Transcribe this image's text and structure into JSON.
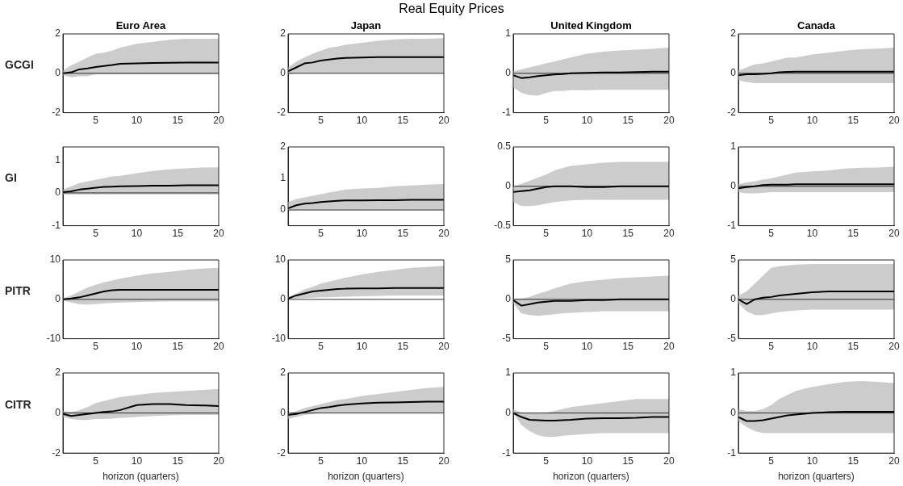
{
  "chart_data": [
    {
      "type": "line",
      "title": "Euro Area",
      "ylabel": "GCGI",
      "annotations": [
        "Real Equity Prices"
      ],
      "x": [
        1,
        2,
        3,
        4,
        5,
        6,
        7,
        8,
        10,
        12,
        14,
        16,
        18,
        20
      ],
      "xlim": [
        1,
        20
      ],
      "xticks": [
        5,
        10,
        15,
        20
      ],
      "ylim": [
        -2,
        2
      ],
      "yticks": [
        -2,
        0,
        2
      ],
      "grid": false,
      "ref_lines": [
        {
          "axis": "y",
          "value": 0
        }
      ],
      "series": [
        {
          "color": "#000000",
          "values": [
            0,
            0.05,
            0.2,
            0.25,
            0.32,
            0.37,
            0.42,
            0.48,
            0.5,
            0.52,
            0.53,
            0.54,
            0.55,
            0.55
          ],
          "lower": [
            -0.1,
            -0.2,
            -0.15,
            -0.15,
            -0.05,
            -0.05,
            -0.05,
            -0.05,
            -0.05,
            -0.05,
            -0.05,
            -0.05,
            -0.05,
            -0.05
          ],
          "upper": [
            0.15,
            0.4,
            0.6,
            0.8,
            1.0,
            1.05,
            1.15,
            1.3,
            1.5,
            1.6,
            1.7,
            1.75,
            1.75,
            1.75
          ]
        }
      ]
    },
    {
      "type": "line",
      "title": "Japan",
      "x": [
        1,
        2,
        3,
        4,
        5,
        6,
        7,
        8,
        10,
        12,
        14,
        16,
        18,
        20
      ],
      "xlim": [
        1,
        20
      ],
      "xticks": [
        5,
        10,
        15,
        20
      ],
      "ylim": [
        -2,
        2
      ],
      "yticks": [
        -2,
        0,
        2
      ],
      "grid": false,
      "ref_lines": [
        {
          "axis": "y",
          "value": 0
        }
      ],
      "series": [
        {
          "color": "#000000",
          "values": [
            0.1,
            0.3,
            0.5,
            0.55,
            0.65,
            0.7,
            0.75,
            0.78,
            0.8,
            0.82,
            0.82,
            0.82,
            0.82,
            0.82
          ],
          "lower": [
            -0.05,
            0,
            0,
            0,
            0,
            0,
            0,
            0,
            0,
            0,
            0,
            0,
            0,
            0
          ],
          "upper": [
            0.3,
            0.6,
            0.8,
            1.0,
            1.15,
            1.3,
            1.35,
            1.45,
            1.55,
            1.65,
            1.72,
            1.75,
            1.75,
            1.78
          ]
        }
      ]
    },
    {
      "type": "line",
      "title": "United Kingdom",
      "x": [
        1,
        2,
        3,
        4,
        5,
        6,
        7,
        8,
        10,
        12,
        14,
        16,
        18,
        20
      ],
      "xlim": [
        1,
        20
      ],
      "xticks": [
        5,
        10,
        15,
        20
      ],
      "ylim": [
        -1,
        1
      ],
      "yticks": [
        -1,
        0,
        1
      ],
      "grid": false,
      "ref_lines": [
        {
          "axis": "y",
          "value": 0
        }
      ],
      "series": [
        {
          "color": "#000000",
          "values": [
            -0.05,
            -0.12,
            -0.1,
            -0.07,
            -0.05,
            -0.03,
            -0.02,
            0,
            0.01,
            0.02,
            0.02,
            0.03,
            0.04,
            0.04
          ],
          "lower": [
            -0.35,
            -0.5,
            -0.55,
            -0.57,
            -0.5,
            -0.45,
            -0.45,
            -0.43,
            -0.43,
            -0.42,
            -0.42,
            -0.42,
            -0.42,
            -0.42
          ],
          "upper": [
            0.05,
            0.1,
            0.15,
            0.2,
            0.25,
            0.3,
            0.35,
            0.4,
            0.5,
            0.55,
            0.58,
            0.6,
            0.62,
            0.65
          ]
        }
      ]
    },
    {
      "type": "line",
      "title": "Canada",
      "x": [
        1,
        2,
        3,
        4,
        5,
        6,
        7,
        8,
        10,
        12,
        14,
        16,
        18,
        20
      ],
      "xlim": [
        1,
        20
      ],
      "xticks": [
        5,
        10,
        15,
        20
      ],
      "ylim": [
        -2,
        2
      ],
      "yticks": [
        -2,
        0,
        2
      ],
      "grid": false,
      "ref_lines": [
        {
          "axis": "y",
          "value": 0
        }
      ],
      "series": [
        {
          "color": "#000000",
          "values": [
            -0.1,
            -0.05,
            -0.05,
            -0.03,
            0,
            0.05,
            0.07,
            0.08,
            0.08,
            0.08,
            0.08,
            0.08,
            0.08,
            0.08
          ],
          "lower": [
            -0.35,
            -0.45,
            -0.5,
            -0.5,
            -0.5,
            -0.5,
            -0.5,
            -0.5,
            -0.5,
            -0.5,
            -0.5,
            -0.5,
            -0.5,
            -0.5
          ],
          "upper": [
            0.15,
            0.3,
            0.45,
            0.5,
            0.6,
            0.7,
            0.8,
            0.8,
            0.95,
            1.05,
            1.15,
            1.22,
            1.25,
            1.3
          ]
        }
      ]
    },
    {
      "type": "line",
      "ylabel": "GI",
      "x": [
        1,
        2,
        3,
        4,
        5,
        6,
        7,
        8,
        10,
        12,
        14,
        16,
        18,
        20
      ],
      "xlim": [
        1,
        20
      ],
      "xticks": [
        5,
        10,
        15,
        20
      ],
      "ylim": [
        -1,
        1.4
      ],
      "yticks": [
        -1,
        0,
        1
      ],
      "grid": false,
      "ref_lines": [
        {
          "axis": "y",
          "value": 0
        }
      ],
      "series": [
        {
          "color": "#000000",
          "values": [
            0.02,
            0.05,
            0.1,
            0.13,
            0.16,
            0.18,
            0.19,
            0.2,
            0.21,
            0.22,
            0.22,
            0.23,
            0.23,
            0.23
          ],
          "lower": [
            -0.05,
            -0.05,
            -0.05,
            -0.05,
            -0.05,
            -0.05,
            -0.05,
            -0.05,
            -0.05,
            -0.05,
            -0.05,
            -0.05,
            -0.05,
            -0.05
          ],
          "upper": [
            0.1,
            0.2,
            0.3,
            0.35,
            0.4,
            0.45,
            0.5,
            0.52,
            0.6,
            0.67,
            0.72,
            0.75,
            0.77,
            0.78
          ]
        }
      ]
    },
    {
      "type": "line",
      "x": [
        1,
        2,
        3,
        4,
        5,
        6,
        7,
        8,
        10,
        12,
        14,
        16,
        18,
        20
      ],
      "xlim": [
        1,
        20
      ],
      "xticks": [
        5,
        10,
        15,
        20
      ],
      "ylim": [
        -0.5,
        2
      ],
      "yticks": [
        0,
        1,
        2
      ],
      "grid": false,
      "ref_lines": [
        {
          "axis": "y",
          "value": 0
        }
      ],
      "series": [
        {
          "color": "#000000",
          "values": [
            0.05,
            0.15,
            0.2,
            0.22,
            0.25,
            0.27,
            0.29,
            0.3,
            0.3,
            0.31,
            0.31,
            0.32,
            0.32,
            0.32
          ],
          "lower": [
            0,
            0,
            0,
            0,
            0,
            0,
            0,
            0,
            0,
            0,
            0,
            0,
            0,
            0
          ],
          "upper": [
            0.25,
            0.35,
            0.4,
            0.45,
            0.5,
            0.55,
            0.6,
            0.65,
            0.68,
            0.7,
            0.75,
            0.78,
            0.8,
            0.82
          ]
        }
      ]
    },
    {
      "type": "line",
      "x": [
        1,
        2,
        3,
        4,
        5,
        6,
        7,
        8,
        10,
        12,
        14,
        16,
        18,
        20
      ],
      "xlim": [
        1,
        20
      ],
      "xticks": [
        5,
        10,
        15,
        20
      ],
      "ylim": [
        -0.5,
        0.5
      ],
      "yticks": [
        -0.5,
        0,
        0.5
      ],
      "grid": false,
      "ref_lines": [
        {
          "axis": "y",
          "value": 0
        }
      ],
      "series": [
        {
          "color": "#000000",
          "values": [
            -0.07,
            -0.06,
            -0.05,
            -0.03,
            -0.01,
            0,
            0,
            0,
            -0.01,
            -0.01,
            0,
            0,
            0,
            0
          ],
          "lower": [
            -0.2,
            -0.25,
            -0.25,
            -0.24,
            -0.22,
            -0.2,
            -0.19,
            -0.18,
            -0.17,
            -0.17,
            -0.17,
            -0.17,
            -0.17,
            -0.17
          ],
          "upper": [
            0,
            0.03,
            0.07,
            0.11,
            0.15,
            0.2,
            0.23,
            0.26,
            0.28,
            0.3,
            0.31,
            0.31,
            0.31,
            0.31
          ]
        }
      ]
    },
    {
      "type": "line",
      "x": [
        1,
        2,
        3,
        4,
        5,
        6,
        7,
        8,
        10,
        12,
        14,
        16,
        18,
        20
      ],
      "xlim": [
        1,
        20
      ],
      "xticks": [
        5,
        10,
        15,
        20
      ],
      "ylim": [
        -1,
        1
      ],
      "yticks": [
        -1,
        0,
        1
      ],
      "grid": false,
      "ref_lines": [
        {
          "axis": "y",
          "value": 0
        }
      ],
      "series": [
        {
          "color": "#000000",
          "values": [
            -0.05,
            -0.02,
            0,
            0.03,
            0.04,
            0.04,
            0.04,
            0.05,
            0.05,
            0.05,
            0.05,
            0.05,
            0.05,
            0.05
          ],
          "lower": [
            -0.15,
            -0.18,
            -0.18,
            -0.17,
            -0.15,
            -0.15,
            -0.15,
            -0.15,
            -0.15,
            -0.15,
            -0.15,
            -0.15,
            -0.15,
            -0.15
          ],
          "upper": [
            0.05,
            0.1,
            0.13,
            0.17,
            0.2,
            0.25,
            0.3,
            0.35,
            0.38,
            0.4,
            0.45,
            0.47,
            0.48,
            0.5
          ]
        }
      ]
    },
    {
      "type": "line",
      "ylabel": "PITR",
      "x": [
        1,
        2,
        3,
        4,
        5,
        6,
        7,
        8,
        10,
        12,
        14,
        16,
        18,
        20
      ],
      "xlim": [
        1,
        20
      ],
      "xticks": [
        5,
        10,
        15,
        20
      ],
      "ylim": [
        -10,
        10
      ],
      "yticks": [
        -10,
        0,
        10
      ],
      "grid": false,
      "ref_lines": [
        {
          "axis": "y",
          "value": 0
        }
      ],
      "series": [
        {
          "color": "#000000",
          "values": [
            0,
            0.2,
            0.5,
            1,
            1.5,
            2,
            2.3,
            2.4,
            2.4,
            2.4,
            2.4,
            2.4,
            2.4,
            2.4
          ],
          "lower": [
            -0.3,
            -0.8,
            -1.2,
            -1.3,
            -1.2,
            -1,
            -0.9,
            -0.8,
            -0.7,
            -0.6,
            -0.5,
            -0.5,
            -0.5,
            -0.5
          ],
          "upper": [
            0.3,
            1,
            2,
            3,
            3.7,
            4.3,
            4.8,
            5.3,
            6,
            6.6,
            7,
            7.5,
            7.8,
            8
          ]
        }
      ]
    },
    {
      "type": "line",
      "x": [
        1,
        2,
        3,
        4,
        5,
        6,
        7,
        8,
        10,
        12,
        14,
        16,
        18,
        20
      ],
      "xlim": [
        1,
        20
      ],
      "xticks": [
        5,
        10,
        15,
        20
      ],
      "ylim": [
        -10,
        10
      ],
      "yticks": [
        -10,
        0,
        10
      ],
      "grid": false,
      "ref_lines": [
        {
          "axis": "y",
          "value": 0
        }
      ],
      "series": [
        {
          "color": "#000000",
          "values": [
            0.2,
            1,
            1.5,
            2,
            2.2,
            2.4,
            2.6,
            2.7,
            2.8,
            2.8,
            2.9,
            2.9,
            2.9,
            2.9
          ],
          "lower": [
            0,
            0.2,
            0.3,
            0.4,
            0.5,
            0.5,
            0.6,
            0.7,
            0.8,
            0.9,
            1,
            1,
            1,
            1
          ],
          "upper": [
            0.5,
            1.5,
            2.5,
            3.2,
            4,
            4.5,
            5,
            5.5,
            6.3,
            7,
            7.5,
            8,
            8.2,
            8.5
          ]
        }
      ]
    },
    {
      "type": "line",
      "x": [
        1,
        2,
        3,
        4,
        5,
        6,
        7,
        8,
        10,
        12,
        14,
        16,
        18,
        20
      ],
      "xlim": [
        1,
        20
      ],
      "xticks": [
        5,
        10,
        15,
        20
      ],
      "ylim": [
        -5,
        5
      ],
      "yticks": [
        -5,
        0,
        5
      ],
      "grid": false,
      "ref_lines": [
        {
          "axis": "y",
          "value": 0
        }
      ],
      "series": [
        {
          "color": "#000000",
          "values": [
            -0.1,
            -0.8,
            -0.6,
            -0.4,
            -0.3,
            -0.2,
            -0.2,
            -0.2,
            -0.1,
            -0.1,
            0,
            0,
            0,
            0
          ],
          "lower": [
            -0.5,
            -1.8,
            -2,
            -2.1,
            -2,
            -1.9,
            -1.8,
            -1.7,
            -1.6,
            -1.5,
            -1.5,
            -1.5,
            -1.5,
            -1.5
          ],
          "upper": [
            0.1,
            0.1,
            0.3,
            0.7,
            1,
            1.4,
            1.7,
            2,
            2.3,
            2.5,
            2.7,
            2.8,
            2.9,
            3
          ]
        }
      ]
    },
    {
      "type": "line",
      "x": [
        1,
        2,
        3,
        4,
        5,
        6,
        7,
        8,
        10,
        12,
        14,
        16,
        18,
        20
      ],
      "xlim": [
        1,
        20
      ],
      "xticks": [
        5,
        10,
        15,
        20
      ],
      "ylim": [
        -5,
        5
      ],
      "yticks": [
        -5,
        0,
        5
      ],
      "grid": false,
      "ref_lines": [
        {
          "axis": "y",
          "value": 0
        }
      ],
      "series": [
        {
          "color": "#000000",
          "values": [
            0,
            -0.6,
            0,
            0.2,
            0.3,
            0.5,
            0.6,
            0.7,
            0.9,
            1,
            1,
            1,
            1,
            1
          ],
          "lower": [
            -0.5,
            -1.5,
            -2,
            -2,
            -1.8,
            -1.6,
            -1.5,
            -1.4,
            -1.3,
            -1.3,
            -1.3,
            -1.3,
            -1.3,
            -1.3
          ],
          "upper": [
            0.5,
            1,
            2,
            3,
            4,
            4.2,
            4.3,
            4.4,
            4.5,
            4.5,
            4.5,
            4.5,
            4.5,
            4.5
          ]
        }
      ]
    },
    {
      "type": "line",
      "ylabel": "CITR",
      "xlabel": "horizon (quarters)",
      "x": [
        1,
        2,
        3,
        4,
        5,
        6,
        7,
        8,
        10,
        12,
        14,
        16,
        18,
        20
      ],
      "xlim": [
        1,
        20
      ],
      "xticks": [
        5,
        10,
        15,
        20
      ],
      "ylim": [
        -2,
        2
      ],
      "yticks": [
        -2,
        0,
        2
      ],
      "grid": false,
      "ref_lines": [
        {
          "axis": "y",
          "value": 0
        }
      ],
      "series": [
        {
          "color": "#000000",
          "values": [
            -0.05,
            -0.15,
            -0.1,
            -0.05,
            0,
            0.05,
            0.08,
            0.15,
            0.4,
            0.45,
            0.45,
            0.4,
            0.38,
            0.35
          ],
          "lower": [
            -0.2,
            -0.3,
            -0.35,
            -0.35,
            -0.3,
            -0.3,
            -0.28,
            -0.25,
            -0.2,
            -0.15,
            -0.12,
            -0.1,
            -0.1,
            -0.1
          ],
          "upper": [
            0.1,
            0.05,
            0.15,
            0.3,
            0.5,
            0.6,
            0.7,
            0.8,
            0.9,
            1,
            1.05,
            1.1,
            1.15,
            1.2
          ]
        }
      ]
    },
    {
      "type": "line",
      "xlabel": "horizon (quarters)",
      "x": [
        1,
        2,
        3,
        4,
        5,
        6,
        7,
        8,
        10,
        12,
        14,
        16,
        18,
        20
      ],
      "xlim": [
        1,
        20
      ],
      "xticks": [
        5,
        10,
        15,
        20
      ],
      "ylim": [
        -2,
        2
      ],
      "yticks": [
        -2,
        0,
        2
      ],
      "grid": false,
      "ref_lines": [
        {
          "axis": "y",
          "value": 0
        }
      ],
      "series": [
        {
          "color": "#000000",
          "values": [
            -0.1,
            -0.05,
            0.05,
            0.15,
            0.25,
            0.3,
            0.37,
            0.42,
            0.48,
            0.52,
            0.53,
            0.55,
            0.57,
            0.57
          ],
          "lower": [
            -0.3,
            -0.2,
            -0.1,
            -0.05,
            0,
            0,
            0,
            0,
            0,
            0,
            0,
            0,
            0,
            0
          ],
          "upper": [
            -0.05,
            0.1,
            0.25,
            0.35,
            0.45,
            0.55,
            0.65,
            0.7,
            0.85,
            0.95,
            1.05,
            1.15,
            1.25,
            1.3
          ]
        }
      ]
    },
    {
      "type": "line",
      "xlabel": "horizon (quarters)",
      "x": [
        1,
        2,
        3,
        4,
        5,
        6,
        7,
        8,
        10,
        12,
        14,
        16,
        18,
        20
      ],
      "xlim": [
        1,
        20
      ],
      "xticks": [
        5,
        10,
        15,
        20
      ],
      "ylim": [
        -1,
        1
      ],
      "yticks": [
        -1,
        0,
        1
      ],
      "grid": false,
      "ref_lines": [
        {
          "axis": "y",
          "value": 0
        }
      ],
      "series": [
        {
          "color": "#000000",
          "values": [
            0,
            -0.1,
            -0.17,
            -0.18,
            -0.19,
            -0.19,
            -0.18,
            -0.17,
            -0.14,
            -0.13,
            -0.13,
            -0.12,
            -0.1,
            -0.1
          ],
          "lower": [
            0,
            -0.3,
            -0.45,
            -0.55,
            -0.6,
            -0.6,
            -0.57,
            -0.55,
            -0.52,
            -0.5,
            -0.5,
            -0.5,
            -0.5,
            -0.5
          ],
          "upper": [
            0.1,
            0,
            0,
            0,
            0,
            0.05,
            0.1,
            0.15,
            0.2,
            0.25,
            0.3,
            0.35,
            0.35,
            0.35
          ]
        }
      ]
    },
    {
      "type": "line",
      "xlabel": "horizon (quarters)",
      "x": [
        1,
        2,
        3,
        4,
        5,
        6,
        7,
        8,
        10,
        12,
        14,
        16,
        18,
        20
      ],
      "xlim": [
        1,
        20
      ],
      "xticks": [
        5,
        10,
        15,
        20
      ],
      "ylim": [
        -1,
        1
      ],
      "yticks": [
        -1,
        0,
        1
      ],
      "grid": false,
      "ref_lines": [
        {
          "axis": "y",
          "value": 0
        }
      ],
      "series": [
        {
          "color": "#000000",
          "values": [
            -0.1,
            -0.2,
            -0.2,
            -0.18,
            -0.14,
            -0.1,
            -0.06,
            -0.04,
            0,
            0.02,
            0.03,
            0.03,
            0.03,
            0.03
          ],
          "lower": [
            -0.2,
            -0.35,
            -0.45,
            -0.5,
            -0.5,
            -0.5,
            -0.5,
            -0.5,
            -0.5,
            -0.5,
            -0.5,
            -0.5,
            -0.5,
            -0.5
          ],
          "upper": [
            0.1,
            0.05,
            0.05,
            0.1,
            0.2,
            0.35,
            0.45,
            0.55,
            0.65,
            0.72,
            0.78,
            0.8,
            0.78,
            0.75
          ]
        }
      ]
    }
  ]
}
